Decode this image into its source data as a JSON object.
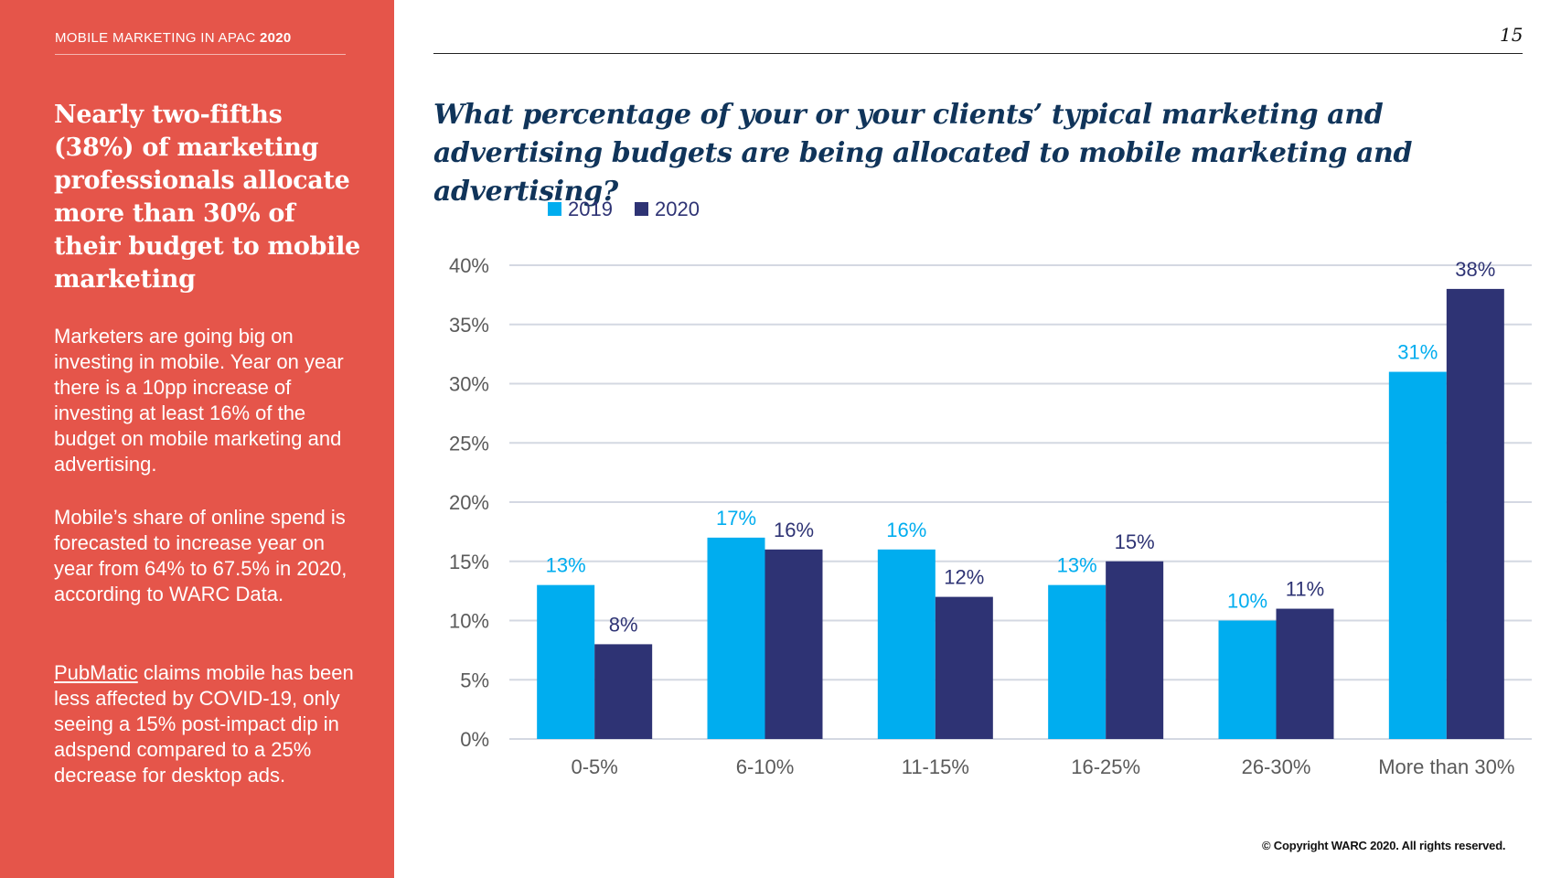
{
  "sidebar": {
    "kicker_prefix": "MOBILE MARKETING IN APAC",
    "kicker_year": "2020",
    "headline": "Nearly two-fifths (38%) of marketing professionals allocate more than 30% of their budget to mobile marketing",
    "para1": "Marketers are going big on investing in mobile. Year on year there is a 10pp increase of investing at least 16% of the budget on mobile marketing and advertising.",
    "para2": "Mobile’s share of online spend is forecasted to increase year on year from 64% to 67.5% in 2020, according to WARC Data.",
    "para3_link": "PubMatic",
    "para3_rest": " claims mobile has been less affected by COVID-19, only seeing a 15% post-impact dip in adspend compared to a 25% decrease for desktop ads."
  },
  "page_number": "15",
  "question": "What percentage of your or your clients’ typical marketing and advertising budgets are being allocated to mobile marketing and advertising?",
  "copyright": "© Copyright WARC 2020. All rights reserved.",
  "colors": {
    "sidebar": "#e5554a",
    "s2019": "#00adef",
    "s2020": "#2e3374",
    "question": "#10345a"
  },
  "chart_data": {
    "type": "bar",
    "title": "",
    "xlabel": "",
    "ylabel": "",
    "ylim": [
      0,
      40
    ],
    "yticks": [
      0,
      5,
      10,
      15,
      20,
      25,
      30,
      35,
      40
    ],
    "ytick_labels": [
      "0%",
      "5%",
      "10%",
      "15%",
      "20%",
      "25%",
      "30%",
      "35%",
      "40%"
    ],
    "grid": true,
    "legend_position": "top-left",
    "categories": [
      "0-5%",
      "6-10%",
      "11-15%",
      "16-25%",
      "26-30%",
      "More than 30%"
    ],
    "series": [
      {
        "name": "2019",
        "values": [
          13,
          17,
          16,
          13,
          10,
          31
        ],
        "labels": [
          "13%",
          "17%",
          "16%",
          "13%",
          "10%",
          "31%"
        ],
        "color": "#00adef"
      },
      {
        "name": "2020",
        "values": [
          8,
          16,
          12,
          15,
          11,
          38
        ],
        "labels": [
          "8%",
          "16%",
          "12%",
          "15%",
          "11%",
          "38%"
        ],
        "color": "#2e3374"
      }
    ]
  }
}
